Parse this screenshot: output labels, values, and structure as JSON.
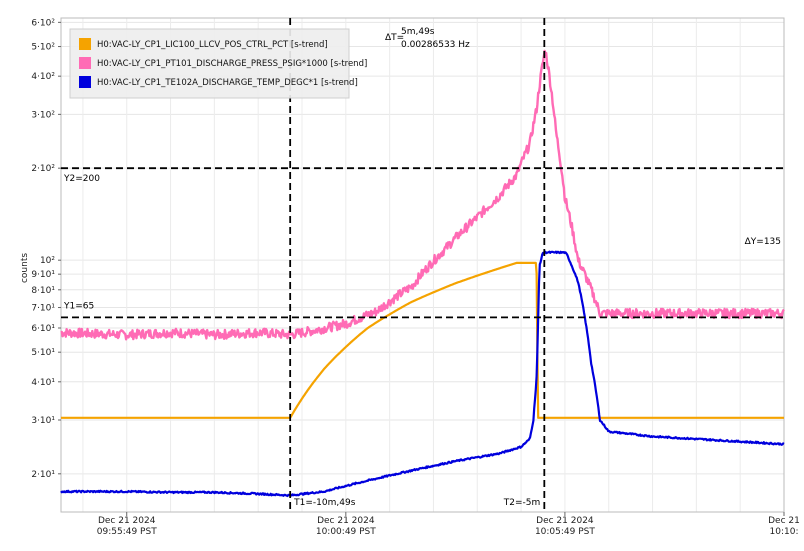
{
  "chart_data": {
    "type": "line",
    "ylabel": "counts",
    "y_scale": "log",
    "ylim": [
      15,
      620
    ],
    "xlim": [
      -1.5,
      15
    ],
    "grid": true,
    "legend_position": "top-left",
    "x_ticks": [
      {
        "x": 0,
        "line1": "Dec 21 2024",
        "line2": "09:55:49 PST"
      },
      {
        "x": 5,
        "line1": "Dec 21 2024",
        "line2": "10:00:49 PST"
      },
      {
        "x": 10,
        "line1": "Dec 21 2024",
        "line2": "10:05:49 PST"
      },
      {
        "x": 15,
        "line1": "Dec 21",
        "line2": "10:10:"
      }
    ],
    "y_ticks": [
      {
        "v": 20,
        "label": "2·10¹"
      },
      {
        "v": 30,
        "label": "3·10¹"
      },
      {
        "v": 40,
        "label": "4·10¹"
      },
      {
        "v": 50,
        "label": "5·10¹"
      },
      {
        "v": 60,
        "label": "6·10¹"
      },
      {
        "v": 70,
        "label": "7·10¹"
      },
      {
        "v": 80,
        "label": "8·10¹"
      },
      {
        "v": 90,
        "label": "9·10¹"
      },
      {
        "v": 100,
        "label": "10²"
      },
      {
        "v": 200,
        "label": "2·10²"
      },
      {
        "v": 300,
        "label": "3·10²"
      },
      {
        "v": 400,
        "label": "4·10²"
      },
      {
        "v": 500,
        "label": "5·10²"
      },
      {
        "v": 600,
        "label": "6·10²"
      }
    ],
    "series": [
      {
        "name": "H0:VAC-LY_CP1_LIC100_LLCV_POS_CTRL_PCT [s-trend]",
        "color": "#f5a300",
        "x": [
          -1.5,
          3.73,
          4.5,
          5.5,
          6.5,
          7.5,
          8.5,
          8.9,
          9.35,
          9.38,
          9.5,
          10.5,
          12,
          13.5,
          15
        ],
        "y": [
          30.5,
          30.5,
          44,
          60,
          73,
          84,
          94,
          98,
          98,
          30.5,
          30.5,
          30.5,
          30.5,
          30.5,
          30.5
        ]
      },
      {
        "name": "H0:VAC-LY_CP1_PT101_DISCHARGE_PRESS_PSIG*1000 [s-trend]",
        "color": "#ff6bb5",
        "x": [
          -1.5,
          0,
          1,
          2,
          3,
          3.73,
          4.3,
          5,
          5.7,
          6.5,
          7.3,
          8,
          8.5,
          8.9,
          9.2,
          9.35,
          9.55,
          9.8,
          10.0,
          10.3,
          10.8,
          11.5,
          12.5,
          13.5,
          14.5,
          15
        ],
        "y": [
          58,
          57,
          58,
          57,
          58,
          57,
          59,
          62,
          68,
          82,
          110,
          138,
          162,
          190,
          240,
          310,
          490,
          260,
          160,
          100,
          67,
          67,
          67,
          67,
          67,
          67
        ]
      },
      {
        "name": "H0:VAC-LY_CP1_TE102A_DISCHARGE_TEMP_DEGC*1 [s-trend]",
        "color": "#0000dd",
        "x": [
          -1.5,
          0,
          1,
          2,
          3,
          3.73,
          4.5,
          5.5,
          6.5,
          7.5,
          8.5,
          9.0,
          9.2,
          9.28,
          9.35,
          9.38,
          9.42,
          9.5,
          10.0,
          10.05,
          10.3,
          10.6,
          10.8,
          11,
          12,
          13,
          14,
          15
        ],
        "y": [
          17.5,
          17.5,
          17.4,
          17.4,
          17.2,
          17.0,
          17.5,
          19.0,
          20.5,
          22.0,
          23.3,
          24.5,
          26,
          30,
          40,
          55,
          96,
          106,
          106,
          104,
          85,
          46,
          30,
          27.5,
          26.5,
          26,
          25.5,
          25.0
        ]
      }
    ],
    "annotations": {
      "T1": {
        "x": 3.73,
        "label": "T1=-10m,49s"
      },
      "T2": {
        "x": 9.53,
        "label": "T2=-5m"
      },
      "Y1": {
        "y": 65,
        "label": "Y1=65"
      },
      "Y2": {
        "y": 200,
        "label": "Y2=200"
      },
      "dT": {
        "prefix": "ΔT=",
        "line1": "5m,49s",
        "line2": "0.00286533 Hz"
      },
      "dY": {
        "label": "ΔY=135"
      }
    }
  }
}
